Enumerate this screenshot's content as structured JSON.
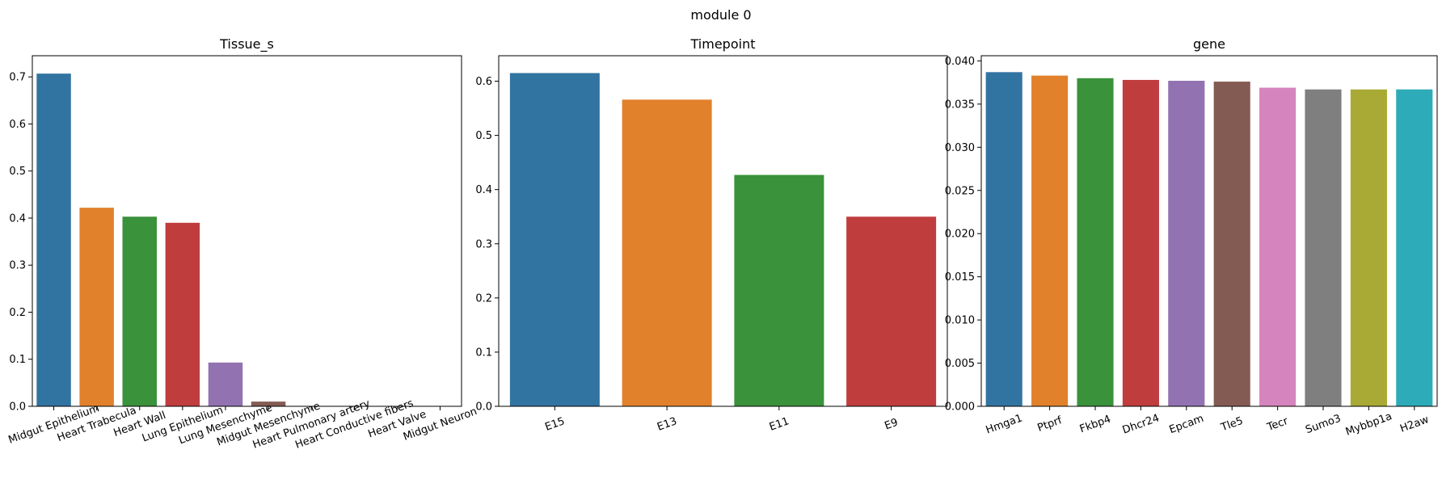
{
  "figure": {
    "suptitle": "module 0"
  },
  "palette": [
    "#3274a1",
    "#e1812c",
    "#3a923a",
    "#c03d3e",
    "#9372b2",
    "#845b53",
    "#d684bd",
    "#7f7f7f",
    "#a9aa35",
    "#2eabb8"
  ],
  "chart_data": [
    {
      "type": "bar",
      "title": "Tissue_s",
      "xlabel": "",
      "ylabel": "",
      "categories": [
        "Midgut Epithelium",
        "Heart Trabecula",
        "Heart Wall",
        "Lung Epithelium",
        "Lung Mesenchyme",
        "Midgut Mesenchyme",
        "Heart Pulmonary artery",
        "Heart Conductive fibers",
        "Heart Valve",
        "Midgut Neuron"
      ],
      "values": [
        0.707,
        0.422,
        0.403,
        0.39,
        0.093,
        0.01,
        0.0,
        0.0,
        0.0,
        0.0
      ],
      "ylim": [
        0,
        0.745
      ],
      "yticks": [
        0.0,
        0.1,
        0.2,
        0.3,
        0.4,
        0.5,
        0.6,
        0.7
      ],
      "ytick_labels": [
        "0.0",
        "0.1",
        "0.2",
        "0.3",
        "0.4",
        "0.5",
        "0.6",
        "0.7"
      ],
      "grid": false,
      "legend": "none"
    },
    {
      "type": "bar",
      "title": "Timepoint",
      "xlabel": "",
      "ylabel": "",
      "categories": [
        "E15",
        "E13",
        "E11",
        "E9"
      ],
      "values": [
        0.615,
        0.566,
        0.427,
        0.35
      ],
      "ylim": [
        0,
        0.647
      ],
      "yticks": [
        0.0,
        0.1,
        0.2,
        0.3,
        0.4,
        0.5,
        0.6
      ],
      "ytick_labels": [
        "0.0",
        "0.1",
        "0.2",
        "0.3",
        "0.4",
        "0.5",
        "0.6"
      ],
      "grid": false,
      "legend": "none"
    },
    {
      "type": "bar",
      "title": "gene",
      "xlabel": "",
      "ylabel": "",
      "categories": [
        "Hmga1",
        "Ptprf",
        "Fkbp4",
        "Dhcr24",
        "Epcam",
        "Tle5",
        "Tecr",
        "Sumo3",
        "Mybbp1a",
        "H2aw"
      ],
      "values": [
        0.0387,
        0.0383,
        0.038,
        0.0378,
        0.0377,
        0.0376,
        0.0369,
        0.0367,
        0.0367,
        0.0367
      ],
      "ylim": [
        0,
        0.0406
      ],
      "yticks": [
        0.0,
        0.005,
        0.01,
        0.015,
        0.02,
        0.025,
        0.03,
        0.035,
        0.04
      ],
      "ytick_labels": [
        "0.000",
        "0.005",
        "0.010",
        "0.015",
        "0.020",
        "0.025",
        "0.030",
        "0.035",
        "0.040"
      ],
      "grid": false,
      "legend": "none"
    }
  ]
}
